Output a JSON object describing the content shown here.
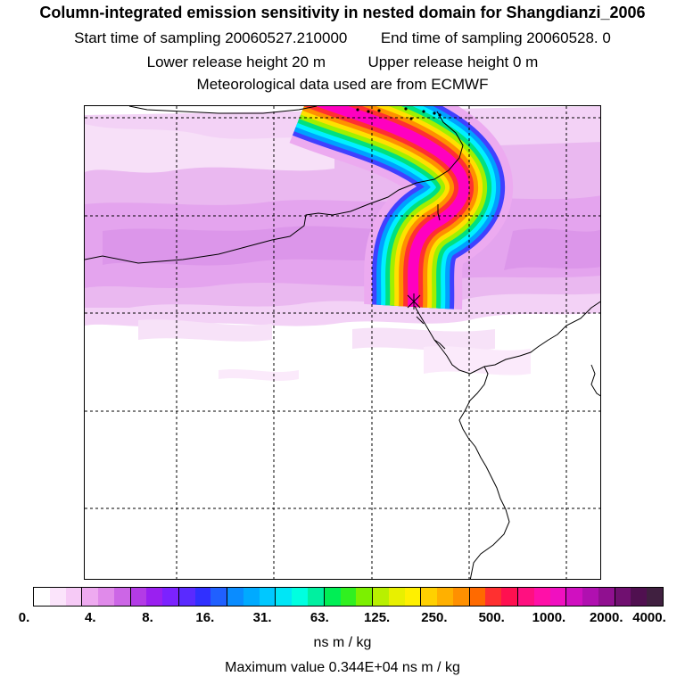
{
  "header": {
    "title": "Column-integrated emission sensitivity in nested domain for Shangdianzi_2006",
    "start_label": "Start time of sampling 20060527.210000",
    "end_label": "End time of sampling 20060528.     0",
    "lower_label": "Lower release height   20 m",
    "upper_label": "Upper release height    0 m",
    "met_label": "Meteorological data used are from ECMWF"
  },
  "legend": {
    "ticks": [
      "0.",
      "4.",
      "8.",
      "16.",
      "31.",
      "63.",
      "125.",
      "250.",
      "500.",
      "1000.",
      "2000.",
      "4000."
    ],
    "colors": [
      "#ffffff",
      "#fbe4fb",
      "#f6caf6",
      "#eeaaf0",
      "#e08aea",
      "#cc66e6",
      "#b33be6",
      "#9a20f0",
      "#7c22ff",
      "#5a2aff",
      "#3030ff",
      "#2060ff",
      "#0a8cff",
      "#00aaff",
      "#00c8ff",
      "#00e6f6",
      "#00ffe0",
      "#00f0a0",
      "#00ee55",
      "#30f020",
      "#7cf000",
      "#b8f000",
      "#e8f000",
      "#fff000",
      "#ffd000",
      "#ffb000",
      "#ff9000",
      "#ff6a00",
      "#ff3030",
      "#ff1050",
      "#ff1080",
      "#ff10a8",
      "#f010c0",
      "#d010c0",
      "#b010b0",
      "#901090",
      "#701070",
      "#501050",
      "#402040"
    ],
    "unit": "ns m / kg",
    "maximum_text": "Maximum value  0.344E+04 ns m / kg"
  },
  "map": {
    "receptor": "Shangdianzi",
    "plume_colors": [
      "#ff00c0",
      "#ff3030",
      "#ff9000",
      "#ffe000",
      "#a0f000",
      "#00e080",
      "#00f0ff",
      "#00a0ff",
      "#4040ff"
    ],
    "background_shades": [
      "#f6d8f8",
      "#eebaf2",
      "#e8a8f0",
      "#fbeafb"
    ]
  }
}
